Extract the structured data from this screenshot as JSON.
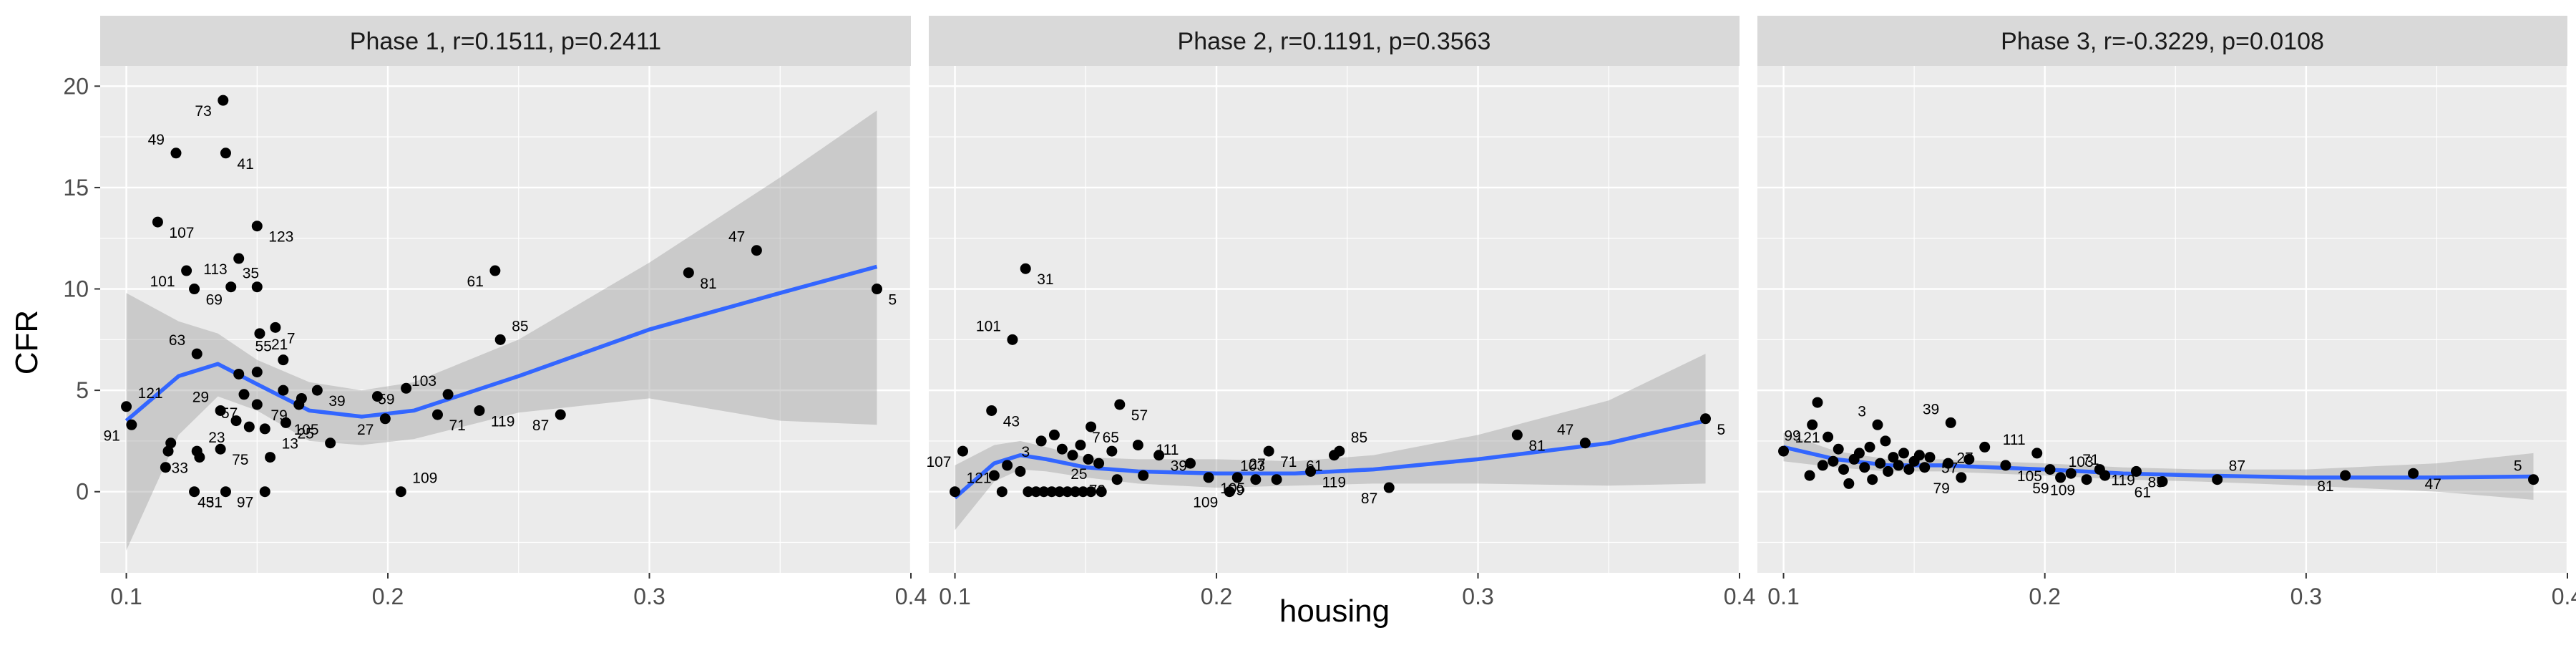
{
  "axis": {
    "xlabel": "housing",
    "ylabel": "CFR",
    "xlim": [
      0.09,
      0.4
    ],
    "ylim": [
      -4,
      21
    ],
    "x_ticks": [
      "0.1",
      "0.2",
      "0.3",
      "0.4"
    ],
    "y_ticks": [
      "0",
      "5",
      "10",
      "15",
      "20"
    ]
  },
  "colors": {
    "panel_bg": "#ebebeb",
    "strip_bg": "#d9d9d9",
    "grid": "#ffffff",
    "points": "#000000",
    "smooth": "#3366ff",
    "ribbon": "#999999"
  },
  "chart_data": [
    {
      "type": "scatter",
      "title": "Phase 1, r=0.1511, p=0.2411",
      "points": [
        {
          "x": 0.1,
          "y": 4.2,
          "label": "121"
        },
        {
          "x": 0.102,
          "y": 3.3,
          "label": "91"
        },
        {
          "x": 0.112,
          "y": 13.3,
          "label": "107"
        },
        {
          "x": 0.119,
          "y": 16.7,
          "label": "49"
        },
        {
          "x": 0.116,
          "y": 2.0,
          "label": ""
        },
        {
          "x": 0.117,
          "y": 2.4,
          "label": ""
        },
        {
          "x": 0.115,
          "y": 1.2,
          "label": ""
        },
        {
          "x": 0.123,
          "y": 10.9,
          "label": "101"
        },
        {
          "x": 0.126,
          "y": 10.0,
          "label": "69"
        },
        {
          "x": 0.127,
          "y": 6.8,
          "label": "63"
        },
        {
          "x": 0.126,
          "y": 0.0,
          "label": "31"
        },
        {
          "x": 0.128,
          "y": 1.7,
          "label": "33"
        },
        {
          "x": 0.127,
          "y": 2.0,
          "label": "23"
        },
        {
          "x": 0.137,
          "y": 19.3,
          "label": "73"
        },
        {
          "x": 0.138,
          "y": 16.7,
          "label": "41"
        },
        {
          "x": 0.136,
          "y": 4.0,
          "label": "29"
        },
        {
          "x": 0.136,
          "y": 2.1,
          "label": "75"
        },
        {
          "x": 0.138,
          "y": 0.0,
          "label": "45"
        },
        {
          "x": 0.14,
          "y": 10.1,
          "label": "35"
        },
        {
          "x": 0.143,
          "y": 11.5,
          "label": "113"
        },
        {
          "x": 0.15,
          "y": 13.1,
          "label": "123"
        },
        {
          "x": 0.15,
          "y": 10.1,
          "label": ""
        },
        {
          "x": 0.151,
          "y": 7.8,
          "label": "21"
        },
        {
          "x": 0.143,
          "y": 5.8,
          "label": ""
        },
        {
          "x": 0.145,
          "y": 4.8,
          "label": ""
        },
        {
          "x": 0.15,
          "y": 5.9,
          "label": ""
        },
        {
          "x": 0.142,
          "y": 3.5,
          "label": ""
        },
        {
          "x": 0.147,
          "y": 3.2,
          "label": "57"
        },
        {
          "x": 0.15,
          "y": 4.3,
          "label": ""
        },
        {
          "x": 0.153,
          "y": 3.1,
          "label": ""
        },
        {
          "x": 0.155,
          "y": 1.7,
          "label": "13"
        },
        {
          "x": 0.153,
          "y": 0.0,
          "label": "97"
        },
        {
          "x": 0.157,
          "y": 8.1,
          "label": "7"
        },
        {
          "x": 0.16,
          "y": 6.5,
          "label": "55"
        },
        {
          "x": 0.161,
          "y": 3.4,
          "label": "25"
        },
        {
          "x": 0.166,
          "y": 4.3,
          "label": "79"
        },
        {
          "x": 0.167,
          "y": 4.6,
          "label": ""
        },
        {
          "x": 0.16,
          "y": 5.0,
          "label": ""
        },
        {
          "x": 0.173,
          "y": 5.0,
          "label": "39"
        },
        {
          "x": 0.178,
          "y": 2.4,
          "label": "105"
        },
        {
          "x": 0.196,
          "y": 4.7,
          "label": ""
        },
        {
          "x": 0.199,
          "y": 3.6,
          "label": "27"
        },
        {
          "x": 0.205,
          "y": 0.0,
          "label": "109"
        },
        {
          "x": 0.207,
          "y": 5.1,
          "label": "59"
        },
        {
          "x": 0.219,
          "y": 3.8,
          "label": "71"
        },
        {
          "x": 0.223,
          "y": 4.8,
          "label": "103"
        },
        {
          "x": 0.235,
          "y": 4.0,
          "label": "119"
        },
        {
          "x": 0.241,
          "y": 10.9,
          "label": "61"
        },
        {
          "x": 0.243,
          "y": 7.5,
          "label": "85"
        },
        {
          "x": 0.266,
          "y": 3.8,
          "label": "87"
        },
        {
          "x": 0.315,
          "y": 10.8,
          "label": "81"
        },
        {
          "x": 0.341,
          "y": 11.9,
          "label": "47"
        },
        {
          "x": 0.387,
          "y": 10.0,
          "label": "5"
        }
      ],
      "smooth": {
        "x": [
          0.1,
          0.12,
          0.135,
          0.15,
          0.17,
          0.19,
          0.21,
          0.25,
          0.3,
          0.35,
          0.387
        ],
        "y": [
          3.5,
          5.7,
          6.3,
          5.3,
          4.0,
          3.7,
          4.0,
          5.7,
          8.0,
          9.8,
          11.1
        ],
        "lower": [
          -2.9,
          2.8,
          4.7,
          4.0,
          2.5,
          2.3,
          2.6,
          3.9,
          4.6,
          3.5,
          3.3
        ],
        "upper": [
          9.8,
          8.4,
          7.8,
          6.5,
          5.4,
          5.0,
          5.4,
          7.5,
          11.3,
          15.5,
          18.8
        ]
      }
    },
    {
      "type": "scatter",
      "title": "Phase 2, r=0.1191, p=0.3563",
      "points": [
        {
          "x": 0.1,
          "y": 0.0,
          "label": "121"
        },
        {
          "x": 0.103,
          "y": 2.0,
          "label": "107"
        },
        {
          "x": 0.114,
          "y": 4.0,
          "label": "43"
        },
        {
          "x": 0.122,
          "y": 7.5,
          "label": "101"
        },
        {
          "x": 0.127,
          "y": 11.0,
          "label": "31"
        },
        {
          "x": 0.115,
          "y": 0.8,
          "label": ""
        },
        {
          "x": 0.118,
          "y": 0.0,
          "label": ""
        },
        {
          "x": 0.12,
          "y": 1.3,
          "label": ""
        },
        {
          "x": 0.125,
          "y": 1.0,
          "label": ""
        },
        {
          "x": 0.128,
          "y": 0.0,
          "label": ""
        },
        {
          "x": 0.131,
          "y": 0.0,
          "label": ""
        },
        {
          "x": 0.134,
          "y": 0.0,
          "label": ""
        },
        {
          "x": 0.137,
          "y": 0.0,
          "label": ""
        },
        {
          "x": 0.14,
          "y": 0.0,
          "label": ""
        },
        {
          "x": 0.143,
          "y": 0.0,
          "label": ""
        },
        {
          "x": 0.146,
          "y": 0.0,
          "label": ""
        },
        {
          "x": 0.149,
          "y": 0.0,
          "label": ""
        },
        {
          "x": 0.152,
          "y": 0.0,
          "label": ""
        },
        {
          "x": 0.156,
          "y": 0.0,
          "label": ""
        },
        {
          "x": 0.133,
          "y": 2.5,
          "label": "3"
        },
        {
          "x": 0.138,
          "y": 2.8,
          "label": ""
        },
        {
          "x": 0.141,
          "y": 2.1,
          "label": ""
        },
        {
          "x": 0.145,
          "y": 1.8,
          "label": ""
        },
        {
          "x": 0.148,
          "y": 2.3,
          "label": ""
        },
        {
          "x": 0.151,
          "y": 1.6,
          "label": ""
        },
        {
          "x": 0.155,
          "y": 1.4,
          "label": "25"
        },
        {
          "x": 0.152,
          "y": 3.2,
          "label": "65"
        },
        {
          "x": 0.16,
          "y": 2.0,
          "label": "7"
        },
        {
          "x": 0.163,
          "y": 4.3,
          "label": "57"
        },
        {
          "x": 0.162,
          "y": 0.6,
          "label": "79"
        },
        {
          "x": 0.17,
          "y": 2.3,
          "label": ""
        },
        {
          "x": 0.172,
          "y": 0.8,
          "label": ""
        },
        {
          "x": 0.178,
          "y": 1.8,
          "label": "39"
        },
        {
          "x": 0.19,
          "y": 1.4,
          "label": "111"
        },
        {
          "x": 0.197,
          "y": 0.7,
          "label": "105"
        },
        {
          "x": 0.205,
          "y": 0.0,
          "label": "109"
        },
        {
          "x": 0.208,
          "y": 0.7,
          "label": "27"
        },
        {
          "x": 0.215,
          "y": 0.6,
          "label": "59"
        },
        {
          "x": 0.22,
          "y": 2.0,
          "label": "71"
        },
        {
          "x": 0.223,
          "y": 0.6,
          "label": "103"
        },
        {
          "x": 0.236,
          "y": 1.0,
          "label": "119"
        },
        {
          "x": 0.245,
          "y": 1.8,
          "label": "61"
        },
        {
          "x": 0.247,
          "y": 2.0,
          "label": "85"
        },
        {
          "x": 0.266,
          "y": 0.2,
          "label": "87"
        },
        {
          "x": 0.315,
          "y": 2.8,
          "label": "81"
        },
        {
          "x": 0.341,
          "y": 2.4,
          "label": "47"
        },
        {
          "x": 0.387,
          "y": 3.6,
          "label": "5"
        }
      ],
      "smooth": {
        "x": [
          0.1,
          0.115,
          0.125,
          0.135,
          0.15,
          0.17,
          0.2,
          0.23,
          0.26,
          0.3,
          0.35,
          0.387
        ],
        "y": [
          -0.3,
          1.4,
          1.8,
          1.6,
          1.2,
          1.0,
          0.9,
          0.9,
          1.1,
          1.6,
          2.4,
          3.5
        ],
        "lower": [
          -1.9,
          0.5,
          1.1,
          1.0,
          0.7,
          0.4,
          0.2,
          0.3,
          0.4,
          0.4,
          0.3,
          0.4
        ],
        "upper": [
          1.3,
          2.3,
          2.5,
          2.2,
          1.7,
          1.6,
          1.6,
          1.5,
          1.8,
          2.8,
          4.5,
          6.8
        ]
      }
    },
    {
      "type": "scatter",
      "title": "Phase 3, r=-0.3229, p=0.0108",
      "points": [
        {
          "x": 0.1,
          "y": 2.0,
          "label": "121"
        },
        {
          "x": 0.111,
          "y": 3.3,
          "label": "99"
        },
        {
          "x": 0.113,
          "y": 4.4,
          "label": ""
        },
        {
          "x": 0.11,
          "y": 0.8,
          "label": ""
        },
        {
          "x": 0.115,
          "y": 1.3,
          "label": ""
        },
        {
          "x": 0.117,
          "y": 2.7,
          "label": ""
        },
        {
          "x": 0.119,
          "y": 1.5,
          "label": ""
        },
        {
          "x": 0.121,
          "y": 2.1,
          "label": ""
        },
        {
          "x": 0.123,
          "y": 1.1,
          "label": ""
        },
        {
          "x": 0.125,
          "y": 0.4,
          "label": ""
        },
        {
          "x": 0.127,
          "y": 1.6,
          "label": ""
        },
        {
          "x": 0.129,
          "y": 1.9,
          "label": ""
        },
        {
          "x": 0.131,
          "y": 1.2,
          "label": ""
        },
        {
          "x": 0.133,
          "y": 2.2,
          "label": ""
        },
        {
          "x": 0.134,
          "y": 0.6,
          "label": ""
        },
        {
          "x": 0.136,
          "y": 3.3,
          "label": "3"
        },
        {
          "x": 0.137,
          "y": 1.4,
          "label": ""
        },
        {
          "x": 0.139,
          "y": 2.5,
          "label": ""
        },
        {
          "x": 0.14,
          "y": 1.0,
          "label": ""
        },
        {
          "x": 0.142,
          "y": 1.7,
          "label": ""
        },
        {
          "x": 0.144,
          "y": 1.3,
          "label": ""
        },
        {
          "x": 0.146,
          "y": 1.9,
          "label": ""
        },
        {
          "x": 0.148,
          "y": 1.1,
          "label": ""
        },
        {
          "x": 0.15,
          "y": 1.5,
          "label": ""
        },
        {
          "x": 0.152,
          "y": 1.8,
          "label": ""
        },
        {
          "x": 0.154,
          "y": 1.2,
          "label": ""
        },
        {
          "x": 0.156,
          "y": 1.7,
          "label": "57"
        },
        {
          "x": 0.164,
          "y": 3.4,
          "label": "39"
        },
        {
          "x": 0.163,
          "y": 1.4,
          "label": ""
        },
        {
          "x": 0.168,
          "y": 0.7,
          "label": "79"
        },
        {
          "x": 0.171,
          "y": 1.6,
          "label": ""
        },
        {
          "x": 0.177,
          "y": 2.2,
          "label": "27"
        },
        {
          "x": 0.185,
          "y": 1.3,
          "label": "105"
        },
        {
          "x": 0.197,
          "y": 1.9,
          "label": "111"
        },
        {
          "x": 0.202,
          "y": 1.1,
          "label": ""
        },
        {
          "x": 0.206,
          "y": 0.7,
          "label": "59"
        },
        {
          "x": 0.21,
          "y": 0.9,
          "label": "71"
        },
        {
          "x": 0.216,
          "y": 0.6,
          "label": "109"
        },
        {
          "x": 0.221,
          "y": 1.1,
          "label": "119"
        },
        {
          "x": 0.223,
          "y": 0.8,
          "label": "103"
        },
        {
          "x": 0.235,
          "y": 1.0,
          "label": "85"
        },
        {
          "x": 0.245,
          "y": 0.5,
          "label": "61"
        },
        {
          "x": 0.266,
          "y": 0.6,
          "label": "87"
        },
        {
          "x": 0.315,
          "y": 0.8,
          "label": "81"
        },
        {
          "x": 0.341,
          "y": 0.9,
          "label": "47"
        },
        {
          "x": 0.387,
          "y": 0.6,
          "label": "5"
        }
      ],
      "smooth": {
        "x": [
          0.1,
          0.12,
          0.14,
          0.16,
          0.18,
          0.2,
          0.23,
          0.26,
          0.3,
          0.35,
          0.387
        ],
        "y": [
          2.2,
          1.6,
          1.3,
          1.3,
          1.2,
          1.1,
          0.9,
          0.8,
          0.7,
          0.7,
          0.75
        ],
        "lower": [
          1.5,
          1.2,
          1.0,
          1.0,
          0.9,
          0.8,
          0.6,
          0.5,
          0.3,
          0.0,
          -0.4
        ],
        "upper": [
          2.9,
          2.0,
          1.6,
          1.6,
          1.5,
          1.4,
          1.2,
          1.1,
          1.1,
          1.4,
          1.9
        ]
      }
    }
  ]
}
